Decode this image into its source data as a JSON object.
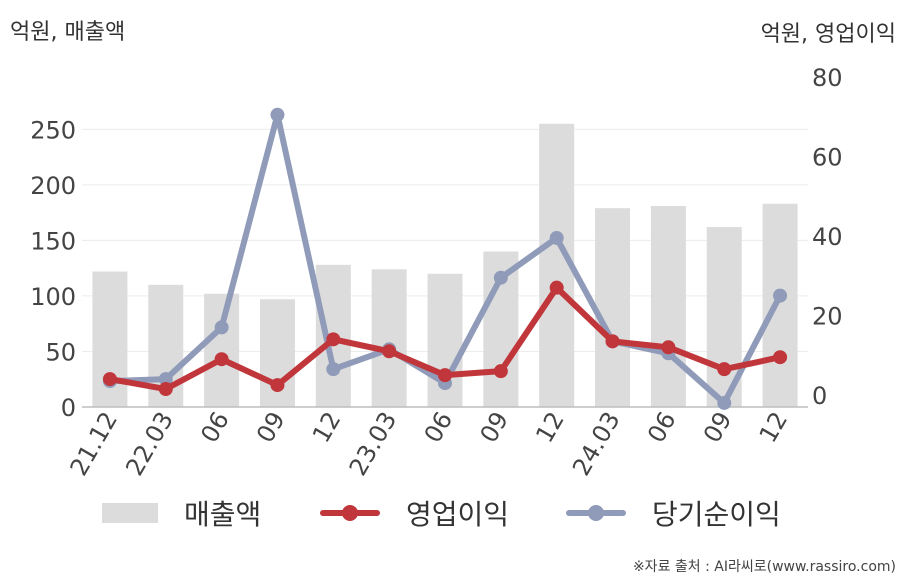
{
  "left_unit": "억원, 매출액",
  "right_unit": "억원, 영업이익",
  "source": "※자료 출처 : AI라씨로(www.rassiro.com)",
  "legend": [
    "매출액",
    "영업이익",
    "당기순이익"
  ],
  "colors": {
    "revenue": "#dcdcdc",
    "operating": "#c0363a",
    "net": "#8f9bb8"
  },
  "chart_data": {
    "type": "bar",
    "categories": [
      "21.12",
      "22.03",
      "06",
      "09",
      "12",
      "23.03",
      "06",
      "09",
      "12",
      "24.03",
      "06",
      "09",
      "12"
    ],
    "y_left": {
      "ylim": [
        0,
        280
      ],
      "ticks": [
        0,
        50,
        100,
        150,
        200,
        250
      ]
    },
    "y_right": {
      "ylim": [
        -3,
        80
      ],
      "ticks": [
        0,
        20,
        40,
        60,
        80
      ]
    },
    "grid": true,
    "legend_position": "bottom",
    "series": [
      {
        "name": "매출액",
        "type": "bar",
        "axis": "left",
        "values": [
          122,
          110,
          102,
          97,
          128,
          124,
          120,
          140,
          255,
          179,
          181,
          162,
          183
        ]
      },
      {
        "name": "영업이익",
        "type": "line",
        "axis": "right",
        "values": [
          4,
          1.5,
          9,
          2.5,
          14,
          11,
          5,
          6,
          27,
          13.5,
          12,
          6.5,
          9.5
        ]
      },
      {
        "name": "당기순이익",
        "type": "line",
        "axis": "right",
        "values": [
          3.5,
          4,
          17,
          70.5,
          6.5,
          11.5,
          3,
          29.5,
          39.5,
          13.5,
          10.5,
          -2,
          25
        ]
      }
    ]
  }
}
